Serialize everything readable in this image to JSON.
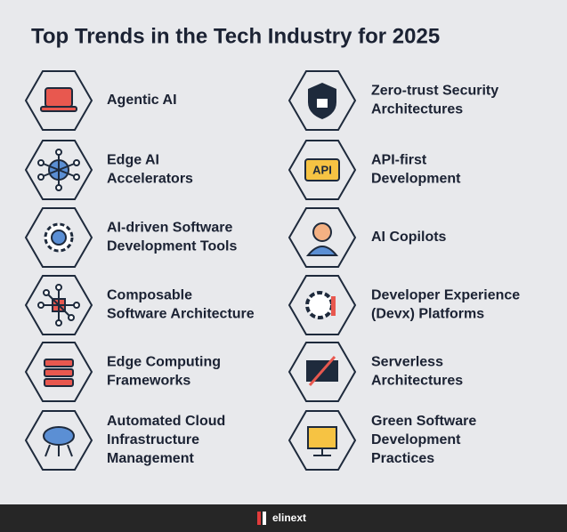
{
  "title": "Top Trends in the Tech Industry for 2025",
  "items": [
    {
      "lines": [
        "Agentic AI"
      ]
    },
    {
      "lines": [
        "Edge AI",
        "Accelerators"
      ]
    },
    {
      "lines": [
        "AI-driven Software",
        "Development Tools"
      ]
    },
    {
      "lines": [
        "Composable",
        "Software Architecture"
      ]
    },
    {
      "lines": [
        "Edge Computing",
        "Frameworks"
      ]
    },
    {
      "lines": [
        "Automated Cloud",
        "Infrastructure",
        "Management"
      ]
    },
    {
      "lines": [
        "Zero-trust Security",
        "Architectures"
      ]
    },
    {
      "lines": [
        "API-first",
        "Development"
      ],
      "icon_text": "API"
    },
    {
      "lines": [
        "AI Copilots"
      ]
    },
    {
      "lines": [
        "Developer Experience",
        "(Devx) Platforms"
      ]
    },
    {
      "lines": [
        "Serverless",
        "Architectures"
      ]
    },
    {
      "lines": [
        "Green Software",
        "Development",
        "Practices"
      ]
    }
  ],
  "footer": {
    "brand": "elinext"
  }
}
